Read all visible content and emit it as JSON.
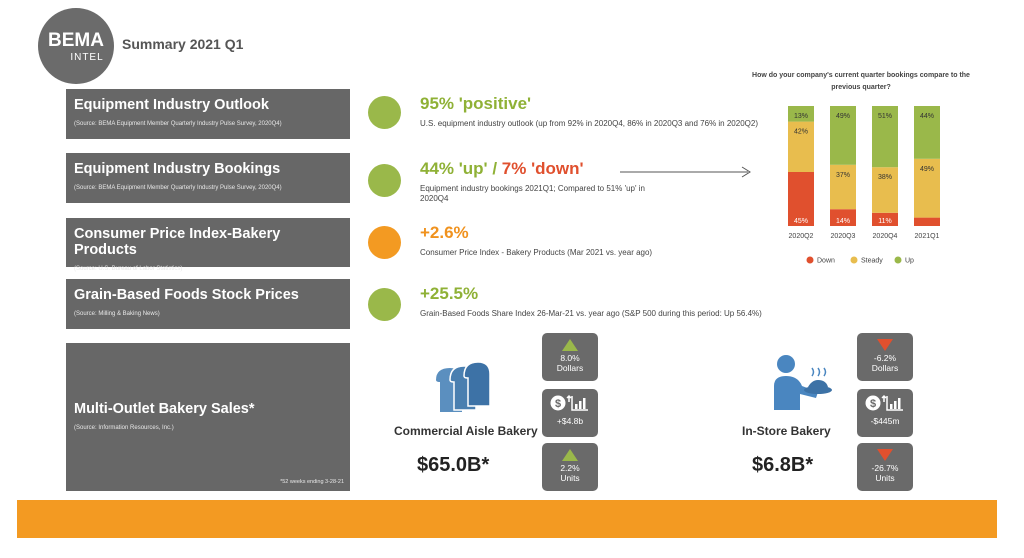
{
  "header": {
    "logo_line1": "BEMA",
    "logo_line2": "INTEL",
    "title": "Summary 2021 Q1"
  },
  "panels": [
    {
      "heading": "Equipment Industry Outlook",
      "source": "(Source: BEMA Equipment Member Quarterly Industry Pulse Survey, 2020Q4)"
    },
    {
      "heading": "Equipment Industry Bookings",
      "source": "(Source: BEMA Equipment Member Quarterly Industry Pulse Survey, 2020Q4)"
    },
    {
      "heading": "Consumer Price Index-Bakery Products",
      "source": "(Source: U.S. Bureau of Labor Statistics)"
    },
    {
      "heading": "Grain-Based Foods Stock Prices",
      "source": "(Source: Milling & Baking News)"
    },
    {
      "heading": "Multi-Outlet Bakery Sales*",
      "source": "(Source: Information Resources, Inc.)",
      "footnote": "*52 weeks ending 3-28-21"
    }
  ],
  "metrics": {
    "outlook": {
      "value": "95% 'positive'",
      "status": "green",
      "desc": "U.S. equipment industry outlook (up from 92% in 2020Q4, 86% in 2020Q3 and 76% in 2020Q2)"
    },
    "bookings": {
      "value_up": "44% 'up'",
      "separator": " / ",
      "value_down": "7% 'down'",
      "status": "green",
      "desc": "Equipment industry bookings 2021Q1; Compared to 51% 'up' in 2020Q4"
    },
    "cpi": {
      "value": "+2.6%",
      "status": "orange",
      "desc": "Consumer Price Index - Bakery Products (Mar 2021 vs. year ago)"
    },
    "stocks": {
      "value": "+25.5%",
      "status": "green",
      "desc": "Grain-Based Foods Share Index 26-Mar-21 vs. year ago (S&P 500 during this period: Up 56.4%)"
    }
  },
  "sales": {
    "commercial": {
      "label": "Commercial Aisle Bakery",
      "total": "$65.0B*",
      "dollars": {
        "value": "8.0%",
        "unit": "Dollars",
        "direction": "up"
      },
      "change": "+$4.8b",
      "units": {
        "value": "2.2%",
        "unit": "Units",
        "direction": "up"
      },
      "icon": "bread-loaves-icon"
    },
    "instore": {
      "label": "In-Store Bakery",
      "total": "$6.8B*",
      "dollars": {
        "value": "-6.2%",
        "unit": "Dollars",
        "direction": "down"
      },
      "change": "-$445m",
      "units": {
        "value": "-26.7%",
        "unit": "Units",
        "direction": "down"
      },
      "icon": "baker-serving-icon"
    },
    "change_icon": "dollar-chart-icon"
  },
  "colors": {
    "green": "#9ab84a",
    "orange": "#f39a22",
    "red": "#e0502e",
    "steady": "#e8bd4e",
    "panel": "#676767"
  },
  "chart_data": {
    "type": "bar",
    "stacked": true,
    "title": "How do your company's current quarter bookings compare to the previous quarter?",
    "categories": [
      "2020Q2",
      "2020Q3",
      "2020Q4",
      "2021Q1"
    ],
    "series": [
      {
        "name": "Down",
        "color": "#e0502e",
        "values": [
          45,
          14,
          11,
          7
        ]
      },
      {
        "name": "Steady",
        "color": "#e8bd4e",
        "values": [
          42,
          37,
          38,
          49
        ]
      },
      {
        "name": "Up",
        "color": "#9ab84a",
        "values": [
          13,
          49,
          51,
          44
        ]
      }
    ],
    "labels": [
      [
        "45%",
        "42%",
        "13%"
      ],
      [
        "14%",
        "37%",
        "49%"
      ],
      [
        "11%",
        "38%",
        "51%"
      ],
      [
        "",
        "49%",
        "44%"
      ]
    ],
    "ylim": [
      0,
      100
    ],
    "legend": "bottom"
  }
}
